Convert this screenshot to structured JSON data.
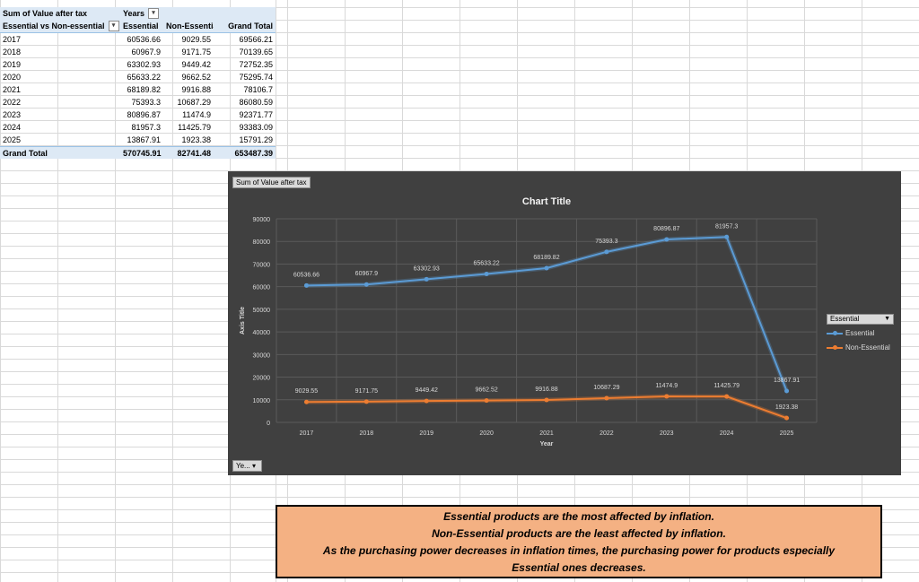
{
  "pivot": {
    "value_field": "Sum of Value after tax",
    "column_field": "Years",
    "row_field": "Essential vs Non-essential",
    "headers": [
      "Essential",
      "Non-Essential",
      "Grand Total"
    ],
    "rows": [
      {
        "label": "2017",
        "essential": "60536.66",
        "non_essential": "9029.55",
        "total": "69566.21"
      },
      {
        "label": "2018",
        "essential": "60967.9",
        "non_essential": "9171.75",
        "total": "70139.65"
      },
      {
        "label": "2019",
        "essential": "63302.93",
        "non_essential": "9449.42",
        "total": "72752.35"
      },
      {
        "label": "2020",
        "essential": "65633.22",
        "non_essential": "9662.52",
        "total": "75295.74"
      },
      {
        "label": "2021",
        "essential": "68189.82",
        "non_essential": "9916.88",
        "total": "78106.7"
      },
      {
        "label": "2022",
        "essential": "75393.3",
        "non_essential": "10687.29",
        "total": "86080.59"
      },
      {
        "label": "2023",
        "essential": "80896.87",
        "non_essential": "11474.9",
        "total": "92371.77"
      },
      {
        "label": "2024",
        "essential": "81957.3",
        "non_essential": "11425.79",
        "total": "93383.09"
      },
      {
        "label": "2025",
        "essential": "13867.91",
        "non_essential": "1923.38",
        "total": "15791.29"
      }
    ],
    "grand_total": {
      "label": "Grand Total",
      "essential": "570745.91",
      "non_essential": "82741.48",
      "total": "653487.39"
    }
  },
  "chart_buttons": {
    "value_field": "Sum of Value after tax",
    "axis_field": "Ye...",
    "legend_field": "Essential"
  },
  "chart_data": {
    "type": "line",
    "title": "Chart Title",
    "xlabel": "Year",
    "ylabel": "Axis Title",
    "categories": [
      "2017",
      "2018",
      "2019",
      "2020",
      "2021",
      "2022",
      "2023",
      "2024",
      "2025"
    ],
    "ylim": [
      0,
      90000
    ],
    "yticks": [
      0,
      10000,
      20000,
      30000,
      40000,
      50000,
      60000,
      70000,
      80000,
      90000
    ],
    "grid": true,
    "legend": "right",
    "series": [
      {
        "name": "Essential",
        "color": "#5b9bd5",
        "values": [
          60536.66,
          60967.9,
          63302.93,
          65633.22,
          68189.82,
          75393.3,
          80896.87,
          81957.3,
          13867.91
        ],
        "labels": [
          "60536.66",
          "60967.9",
          "63302.93",
          "65633.22",
          "68189.82",
          "75393.3",
          "80896.87",
          "81957.3",
          "13867.91"
        ]
      },
      {
        "name": "Non-Essential",
        "color": "#ed7d31",
        "values": [
          9029.55,
          9171.75,
          9449.42,
          9662.52,
          9916.88,
          10687.29,
          11474.9,
          11425.79,
          1923.38
        ],
        "labels": [
          "9029.55",
          "9171.75",
          "9449.42",
          "9662.52",
          "9916.88",
          "10687.29",
          "11474.9",
          "11425.79",
          "1923.38"
        ]
      }
    ]
  },
  "note": {
    "lines": [
      "Essential products are the most affected by inflation.",
      "Non-Essential products are the least affected by inflation.",
      "As the purchasing power decreases in inflation times, the purchasing power for products especially",
      "Essential ones decreases."
    ]
  }
}
